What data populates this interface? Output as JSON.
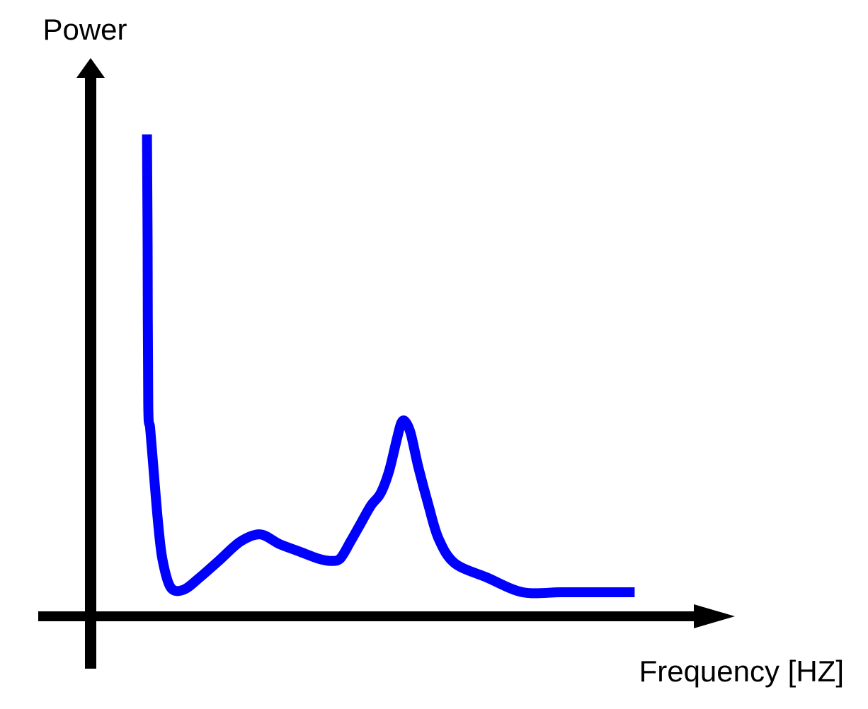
{
  "chart_data": {
    "type": "line",
    "title": "",
    "xlabel": "Frequency [HZ]",
    "ylabel": "Power",
    "x_tick_labels": [],
    "y_tick_labels": [],
    "grid": false,
    "legend": "none",
    "xlim": [
      0,
      100
    ],
    "ylim": [
      0,
      100
    ],
    "series": [
      {
        "color": "#0000ff",
        "x": [
          8.8,
          8.9,
          9.0,
          9.3,
          9.8,
          10.5,
          11.2,
          12.5,
          14.5,
          17.0,
          20.0,
          23.4,
          26.5,
          29.5,
          32.5,
          35.5,
          37.5,
          39.0,
          40.6,
          42.3,
          43.8,
          45.3,
          46.6,
          47.8,
          48.5,
          49.1,
          50.0,
          51.2,
          52.8,
          54.4,
          56.9,
          62.0,
          67.5,
          73.5,
          79.0,
          85.0
        ],
        "y": [
          100.0,
          77.0,
          44.0,
          39.0,
          31.0,
          20.0,
          12.0,
          6.0,
          5.5,
          8.0,
          11.5,
          15.5,
          17.0,
          15.0,
          13.5,
          12.0,
          11.5,
          12.0,
          15.5,
          19.5,
          23.0,
          25.5,
          30.0,
          36.5,
          40.0,
          40.5,
          38.0,
          31.0,
          23.0,
          16.0,
          11.0,
          8.0,
          5.0,
          5.0,
          5.0,
          5.0
        ]
      }
    ]
  }
}
